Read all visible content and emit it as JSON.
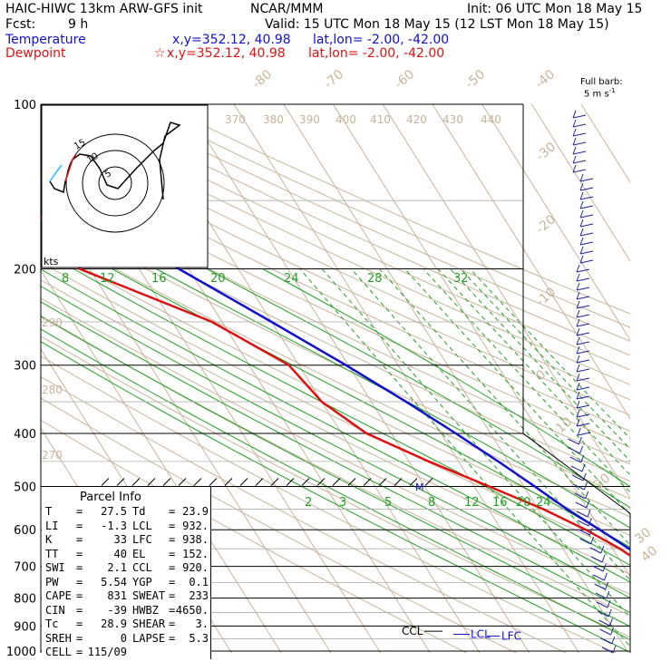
{
  "header": {
    "model": "HAIC-HIWC 13km ARW-GFS init",
    "org": "NCAR/MMM",
    "init": "Init: 06 UTC Mon 18 May 15",
    "fcst_label": "Fcst:",
    "fcst_value": "9 h",
    "valid": "Valid: 15 UTC Mon 18 May 15 (12 LST Mon 18 May 15)",
    "temp_label": "Temperature",
    "temp_xy": "x,y=352.12, 40.98",
    "temp_latlon": "lat,lon= -2.00, -42.00",
    "dew_label": "Dewpoint",
    "dew_xy": "x,y=352.12, 40.98",
    "dew_latlon": "lat,lon= -2.00, -42.00",
    "barb_title": "Full barb:",
    "barb_unit": "5 m s",
    "barb_sup": "-1"
  },
  "parcel": {
    "title": "Parcel Info",
    "rows": [
      {
        "l1": "T",
        "v1": "27.5",
        "l2": "Td",
        "v2": "23.9"
      },
      {
        "l1": "LI",
        "v1": "-1.3",
        "l2": "LCL",
        "v2": "932."
      },
      {
        "l1": "K",
        "v1": "33",
        "l2": "LFC",
        "v2": "938."
      },
      {
        "l1": "TT",
        "v1": "40",
        "l2": "EL",
        "v2": "152."
      },
      {
        "l1": "SWI",
        "v1": "2.1",
        "l2": "CCL",
        "v2": "920."
      },
      {
        "l1": "PW",
        "v1": "5.54",
        "l2": "YGP",
        "v2": "0.1"
      },
      {
        "l1": "CAPE",
        "v1": "831",
        "l2": "SWEAT",
        "v2": "233"
      },
      {
        "l1": "CIN",
        "v1": "-39",
        "l2": "HWBZ",
        "v2": "4650."
      },
      {
        "l1": "Tc",
        "v1": "28.9",
        "l2": "SHEAR",
        "v2": "3."
      },
      {
        "l1": "SREH",
        "v1": "0",
        "l2": "LAPSE",
        "v2": "5.3"
      },
      {
        "l1": "CELL",
        "v1": "115/09",
        "l2": "",
        "v2": ""
      }
    ]
  },
  "hodograph": {
    "units": "kts",
    "rings": [
      "5",
      "10",
      "15"
    ]
  },
  "levels": {
    "el": "EL",
    "ccl": "CCL",
    "lcl": "LCL",
    "lfc": "LFC",
    "m": "M"
  },
  "chart_data": {
    "type": "line",
    "title": "",
    "pressure_ticks": [
      "100",
      "200",
      "300",
      "400",
      "500",
      "600",
      "700",
      "800",
      "900",
      "1000"
    ],
    "isotherm_labels": [
      "-80",
      "-70",
      "-60",
      "-50",
      "-40",
      "-30",
      "-20",
      "-10",
      "0",
      "10",
      "20",
      "30",
      "40"
    ],
    "theta_labels": [
      "370",
      "380",
      "390",
      "400",
      "410",
      "420",
      "430",
      "440"
    ],
    "theta_side_labels": [
      "290",
      "280",
      "270"
    ],
    "mixing_ratio_labels_upper": [
      "8",
      "12",
      "16",
      "20",
      "24",
      "28",
      "32"
    ],
    "mixing_ratio_labels_lower": [
      "2",
      "3",
      "5",
      "8",
      "12",
      "16",
      "20",
      "24"
    ],
    "series": [
      {
        "name": "Temperature",
        "color": "#1010d0",
        "pressure": [
          1000,
          975,
          950,
          925,
          900,
          875,
          850,
          800,
          750,
          700,
          650,
          600,
          550,
          500,
          450,
          400,
          350,
          300,
          250,
          200,
          175,
          150,
          125,
          100
        ],
        "values": [
          27.5,
          25.5,
          23.3,
          21.3,
          19.8,
          18.0,
          16.3,
          13.2,
          10.2,
          7.0,
          3.3,
          -0.2,
          -4.2,
          -7.8,
          -12.0,
          -17.0,
          -23.0,
          -30.5,
          -40.0,
          -52.0,
          -58.0,
          -65.0,
          -73.0,
          -78.0
        ]
      },
      {
        "name": "Dewpoint",
        "color": "#e01010",
        "pressure": [
          1000,
          975,
          950,
          925,
          900,
          875,
          850,
          800,
          750,
          700,
          650,
          600,
          550,
          500,
          450,
          400,
          350,
          300,
          250,
          200,
          175,
          150,
          125,
          100
        ],
        "values": [
          23.9,
          22.8,
          21.8,
          19.5,
          18.5,
          16.5,
          14.8,
          11.5,
          8.0,
          4.5,
          1.5,
          -3.0,
          -9.0,
          -17.0,
          -26.0,
          -35.0,
          -40.0,
          -42.0,
          -52.0,
          -72.0,
          -70.0,
          -76.0,
          -80.0,
          -85.0
        ]
      }
    ]
  }
}
